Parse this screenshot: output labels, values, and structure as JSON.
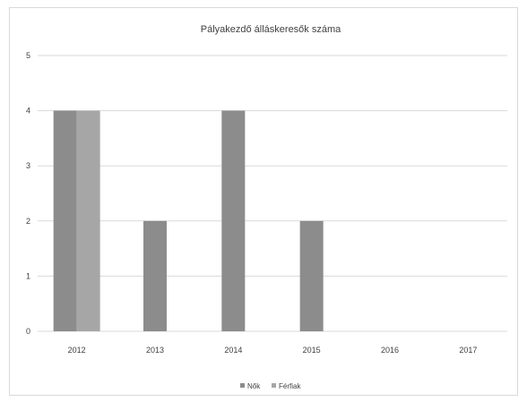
{
  "chart_data": {
    "type": "bar",
    "title": "Pályakezdő álláskeresők száma",
    "categories": [
      "2012",
      "2013",
      "2014",
      "2015",
      "2016",
      "2017"
    ],
    "series": [
      {
        "name": "Nők",
        "values": [
          4,
          2,
          4,
          2,
          0,
          0
        ],
        "color": "#8c8c8c"
      },
      {
        "name": "Férfiak",
        "values": [
          4,
          0,
          0,
          0,
          0,
          0
        ],
        "color": "#a6a6a6"
      }
    ],
    "ylim": [
      0,
      5
    ],
    "yticks": [
      "0",
      "1",
      "2",
      "3",
      "4",
      "5"
    ],
    "grid": true,
    "legend": "bottom",
    "xlabel": "",
    "ylabel": ""
  }
}
